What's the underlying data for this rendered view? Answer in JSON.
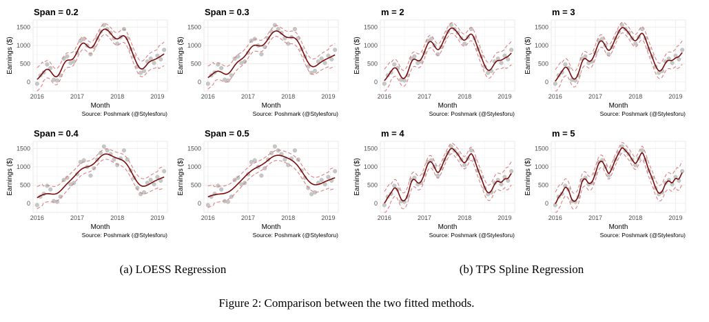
{
  "figure": {
    "caption": "Figure 2: Comparison between the two fitted methods.",
    "subcaption_a": "(a) LOESS Regression",
    "subcaption_b": "(b) TPS Spline Regression"
  },
  "chart_data": [
    {
      "type": "line",
      "title": "Span = 0.2",
      "method": "loess",
      "smooth": 0.2,
      "xlabel": "Month",
      "ylabel": "Earnings ($)",
      "source": "Source: Poshmark (@Stylesforu)",
      "xticks": [
        "2016",
        "2017",
        "2018",
        "2019"
      ],
      "yticks": [
        "0",
        "500",
        "1000",
        "1500"
      ],
      "xlim": [
        2015.9,
        2019.25
      ],
      "ylim": [
        -250,
        1700
      ],
      "grid": true,
      "series": [
        {
          "values": "fitted line"
        },
        {
          "values": "confidence band"
        }
      ]
    },
    {
      "type": "line",
      "title": "Span = 0.3",
      "method": "loess",
      "smooth": 0.3,
      "xlabel": "Month",
      "ylabel": "Earnings ($)",
      "source": "Source: Poshmark (@Stylesforu)",
      "xticks": [
        "2016",
        "2017",
        "2018",
        "2019"
      ],
      "yticks": [
        "0",
        "500",
        "1000",
        "1500"
      ],
      "xlim": [
        2015.9,
        2019.25
      ],
      "ylim": [
        -250,
        1700
      ],
      "grid": true
    },
    {
      "type": "line",
      "title": "m = 2",
      "method": "tps",
      "smooth": 2,
      "xlabel": "Month",
      "ylabel": "Earnings ($)",
      "source": "Source: Poshmark (@Stylesforu)",
      "xticks": [
        "2016",
        "2017",
        "2018",
        "2019"
      ],
      "yticks": [
        "0",
        "500",
        "1000",
        "1500"
      ],
      "xlim": [
        2015.9,
        2019.25
      ],
      "ylim": [
        -250,
        1700
      ],
      "grid": true
    },
    {
      "type": "line",
      "title": "m = 3",
      "method": "tps",
      "smooth": 3,
      "xlabel": "Month",
      "ylabel": "Earnings ($)",
      "source": "Source: Poshmark (@Stylesforu)",
      "xticks": [
        "2016",
        "2017",
        "2018",
        "2019"
      ],
      "yticks": [
        "0",
        "500",
        "1000",
        "1500"
      ],
      "xlim": [
        2015.9,
        2019.25
      ],
      "ylim": [
        -250,
        1700
      ],
      "grid": true
    },
    {
      "type": "line",
      "title": "Span = 0.4",
      "method": "loess",
      "smooth": 0.4,
      "xlabel": "Month",
      "ylabel": "Earnings ($)",
      "source": "Source: Poshmark (@Stylesforu)",
      "xticks": [
        "2016",
        "2017",
        "2018",
        "2019"
      ],
      "yticks": [
        "0",
        "500",
        "1000",
        "1500"
      ],
      "xlim": [
        2015.9,
        2019.25
      ],
      "ylim": [
        -250,
        1700
      ],
      "grid": true
    },
    {
      "type": "line",
      "title": "Span = 0.5",
      "method": "loess",
      "smooth": 0.5,
      "xlabel": "Month",
      "ylabel": "Earnings ($)",
      "source": "Source: Poshmark (@Stylesforu)",
      "xticks": [
        "2016",
        "2017",
        "2018",
        "2019"
      ],
      "yticks": [
        "0",
        "500",
        "1000",
        "1500"
      ],
      "xlim": [
        2015.9,
        2019.25
      ],
      "ylim": [
        -250,
        1700
      ],
      "grid": true
    },
    {
      "type": "line",
      "title": "m = 4",
      "method": "tps",
      "smooth": 4,
      "xlabel": "Month",
      "ylabel": "Earnings ($)",
      "source": "Source: Poshmark (@Stylesforu)",
      "xticks": [
        "2016",
        "2017",
        "2018",
        "2019"
      ],
      "yticks": [
        "0",
        "500",
        "1000",
        "1500"
      ],
      "xlim": [
        2015.9,
        2019.25
      ],
      "ylim": [
        -250,
        1700
      ],
      "grid": true
    },
    {
      "type": "line",
      "title": "m = 5",
      "method": "tps",
      "smooth": 5,
      "xlabel": "Month",
      "ylabel": "Earnings ($)",
      "source": "Source: Poshmark (@Stylesforu)",
      "xticks": [
        "2016",
        "2017",
        "2018",
        "2019"
      ],
      "yticks": [
        "0",
        "500",
        "1000",
        "1500"
      ],
      "xlim": [
        2015.9,
        2019.25
      ],
      "ylim": [
        -250,
        1700
      ],
      "grid": true
    }
  ],
  "observations": {
    "x": [
      2016.0,
      2016.083,
      2016.167,
      2016.25,
      2016.333,
      2016.417,
      2016.5,
      2016.583,
      2016.667,
      2016.75,
      2016.833,
      2016.917,
      2017.0,
      2017.083,
      2017.167,
      2017.25,
      2017.333,
      2017.417,
      2017.5,
      2017.583,
      2017.667,
      2017.75,
      2017.833,
      2017.917,
      2018.0,
      2018.083,
      2018.167,
      2018.25,
      2018.333,
      2018.417,
      2018.5,
      2018.583,
      2018.667,
      2018.75,
      2018.833,
      2018.917,
      2019.0,
      2019.083,
      2019.167
    ],
    "y": [
      -50,
      180,
      260,
      480,
      380,
      60,
      40,
      180,
      640,
      700,
      520,
      560,
      800,
      1130,
      1180,
      1000,
      760,
      960,
      1200,
      1380,
      1560,
      1450,
      1350,
      1200,
      1050,
      1230,
      1450,
      1200,
      900,
      700,
      420,
      250,
      300,
      560,
      640,
      520,
      720,
      620,
      880
    ],
    "point_color": "#bdbdbd"
  },
  "colors": {
    "fit_line": "#7a0a0a",
    "band": "#d98080",
    "panel_bg": "#ffffff",
    "grid": "#ebebeb"
  }
}
